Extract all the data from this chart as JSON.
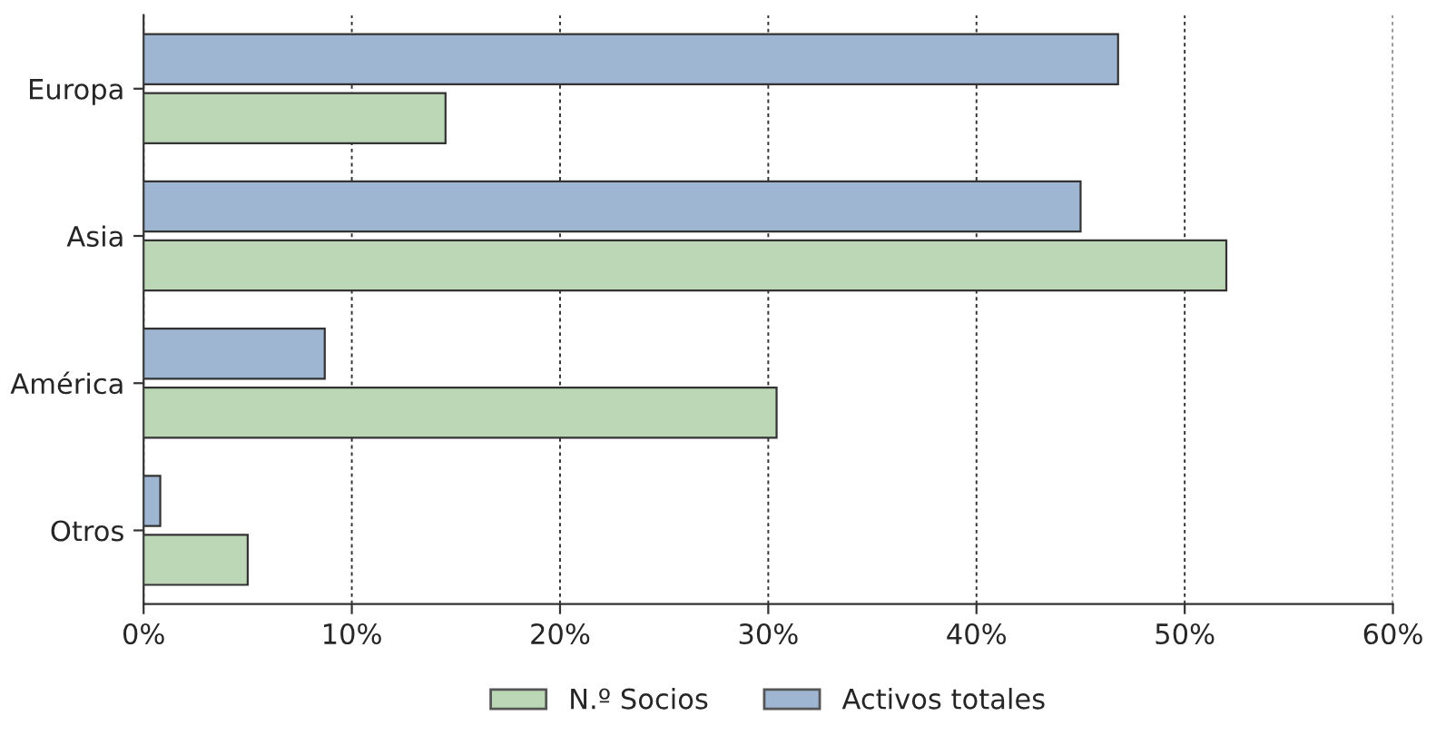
{
  "chart_data": {
    "type": "bar",
    "orientation": "horizontal",
    "categories": [
      "Europa",
      "Asia",
      "América",
      "Otros"
    ],
    "series": [
      {
        "name": "N.º Socios",
        "color": "#bcd7b5",
        "values": [
          14.5,
          52,
          30.4,
          5
        ]
      },
      {
        "name": "Activos totales",
        "color": "#9fb6d3",
        "values": [
          46.8,
          45,
          8.7,
          0.8
        ]
      }
    ],
    "xlim": [
      0,
      60
    ],
    "xticks": [
      {
        "value": 0,
        "label": "0%"
      },
      {
        "value": 10,
        "label": "10%"
      },
      {
        "value": 20,
        "label": "20%"
      },
      {
        "value": 30,
        "label": "30%"
      },
      {
        "value": 40,
        "label": "40%"
      },
      {
        "value": 50,
        "label": "50%"
      },
      {
        "value": 60,
        "label": "60%"
      }
    ],
    "grid": "x",
    "legend": "bottom"
  }
}
